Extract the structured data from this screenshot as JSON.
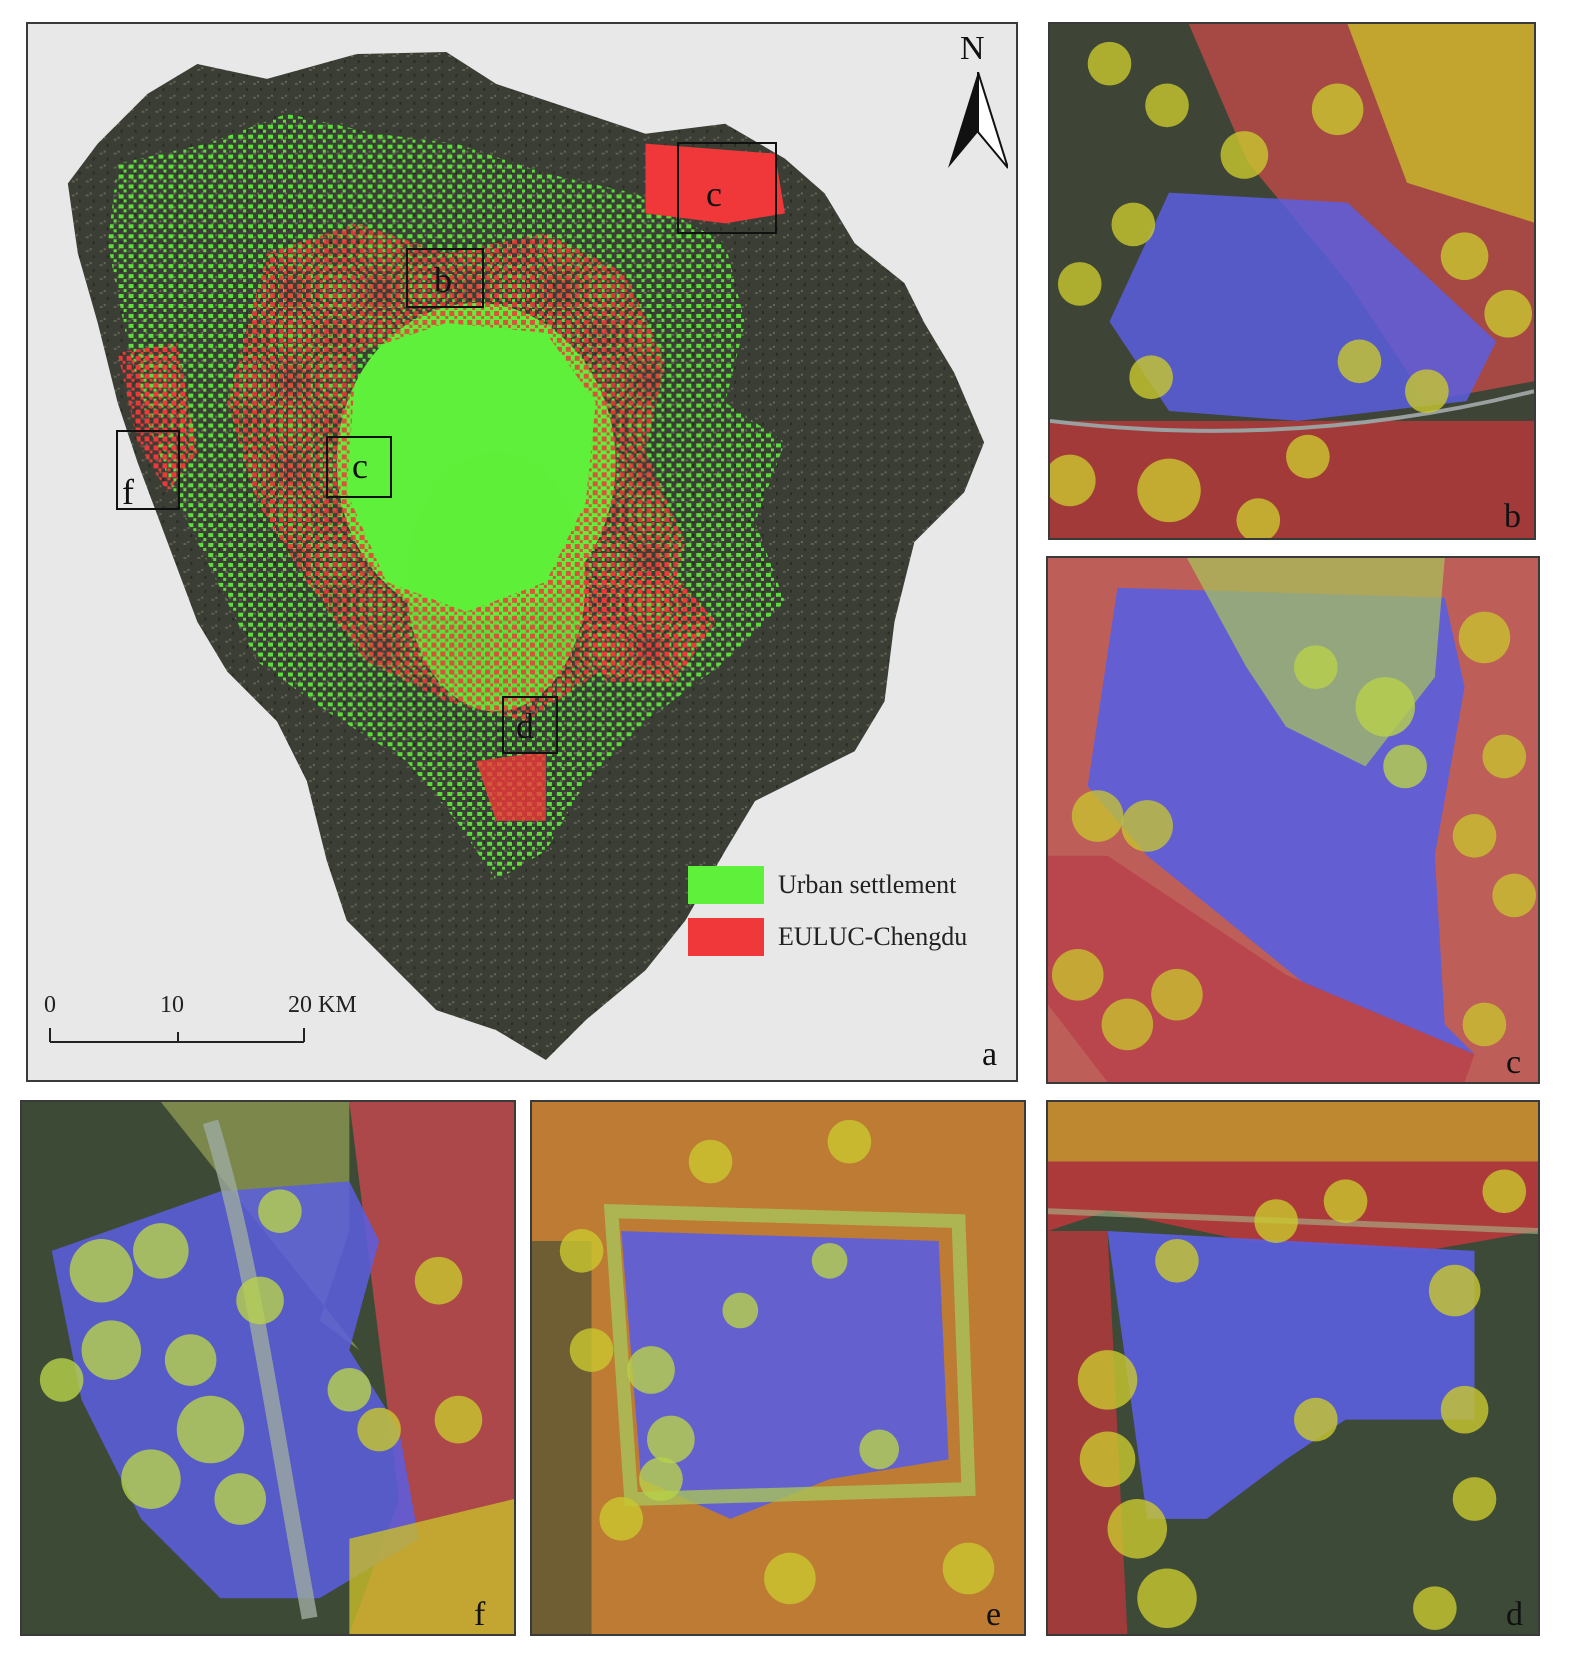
{
  "main_map": {
    "panel_label": "a",
    "north": "N",
    "legend": [
      {
        "label": "Urban settlement",
        "color": "#5ef03a"
      },
      {
        "label": "EULUC-Chengdu",
        "color": "#f0373a"
      }
    ],
    "scale": {
      "ticks": [
        "0",
        "10",
        "20 KM"
      ]
    },
    "boxes": [
      {
        "label": "b"
      },
      {
        "label": "c"
      },
      {
        "label": "c"
      },
      {
        "label": "f"
      },
      {
        "label": "d"
      }
    ]
  },
  "insets": [
    {
      "label": "b"
    },
    {
      "label": "c"
    },
    {
      "label": "f"
    },
    {
      "label": "e"
    },
    {
      "label": "d"
    }
  ],
  "colors": {
    "urban_green": "#5ef03a",
    "euluc_red": "#f0373a",
    "aoi_blue": "#5a5ee0",
    "buffer_yellow": "#d8d020",
    "background": "#e8e8e8"
  }
}
